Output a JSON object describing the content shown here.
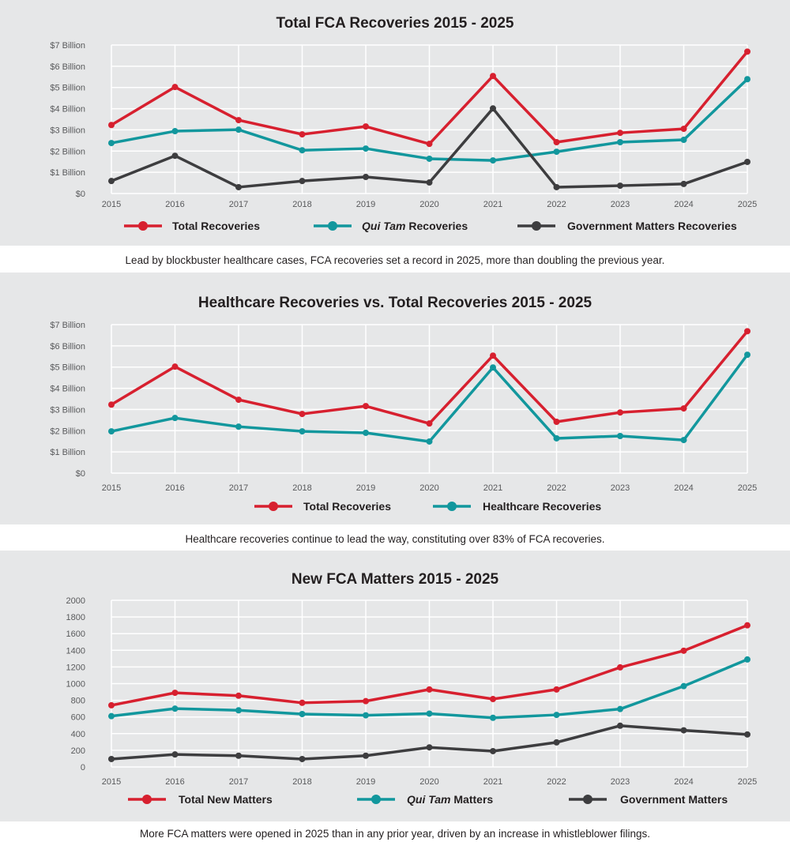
{
  "colors": {
    "panel_bg": "#e6e7e8",
    "grid": "#ffffff",
    "red": "#d7202f",
    "teal": "#12979d",
    "dark": "#3d3d3f"
  },
  "chart_data": [
    {
      "type": "line",
      "title": "Total FCA Recoveries 2015 - 2025",
      "caption": "Lead by blockbuster healthcare cases, FCA recoveries set a record in 2025, more than doubling the previous year.",
      "x": [
        "2015",
        "2016",
        "2017",
        "2018",
        "2019",
        "2020",
        "2021",
        "2022",
        "2023",
        "2024",
        "2025"
      ],
      "ylim": [
        0,
        7
      ],
      "yticks": [
        "$0",
        "$1 Billion",
        "$2 Billion",
        "$3 Billion",
        "$4 Billion",
        "$5 Billion",
        "$6 Billion",
        "$7 Billion"
      ],
      "grid": true,
      "legend": "bottom",
      "series": [
        {
          "name": "Total Recoveries",
          "color": "#d7202f",
          "values": [
            3.23,
            5.02,
            3.46,
            2.79,
            3.16,
            2.34,
            5.54,
            2.42,
            2.86,
            3.05,
            6.69
          ]
        },
        {
          "name": "Qui Tam Recoveries",
          "color": "#12979d",
          "values": [
            2.38,
            2.94,
            3.01,
            2.04,
            2.12,
            1.64,
            1.56,
            1.97,
            2.42,
            2.53,
            5.39
          ]
        },
        {
          "name": "Government Matters Recoveries",
          "color": "#3d3d3f",
          "values": [
            0.59,
            1.78,
            0.3,
            0.59,
            0.78,
            0.52,
            4.01,
            0.3,
            0.37,
            0.45,
            1.49
          ]
        }
      ]
    },
    {
      "type": "line",
      "title": "Healthcare Recoveries vs. Total Recoveries 2015 - 2025",
      "caption": "Healthcare recoveries continue to lead the way, constituting over 83% of FCA recoveries.",
      "x": [
        "2015",
        "2016",
        "2017",
        "2018",
        "2019",
        "2020",
        "2021",
        "2022",
        "2023",
        "2024",
        "2025"
      ],
      "ylim": [
        0,
        7
      ],
      "yticks": [
        "$0",
        "$1 Billion",
        "$2 Billion",
        "$3 Billion",
        "$4 Billion",
        "$5 Billion",
        "$6 Billion",
        "$7 Billion"
      ],
      "grid": true,
      "legend": "bottom",
      "series": [
        {
          "name": "Total Recoveries",
          "color": "#d7202f",
          "values": [
            3.23,
            5.02,
            3.46,
            2.79,
            3.16,
            2.34,
            5.54,
            2.42,
            2.86,
            3.05,
            6.69
          ]
        },
        {
          "name": "Healthcare Recoveries",
          "color": "#12979d",
          "values": [
            1.97,
            2.6,
            2.19,
            1.97,
            1.9,
            1.49,
            4.98,
            1.64,
            1.75,
            1.56,
            5.58
          ]
        }
      ]
    },
    {
      "type": "line",
      "title": "New FCA Matters 2015 - 2025",
      "caption": "More FCA matters were opened in 2025 than in any prior year, driven by an increase in whistleblower filings.",
      "x": [
        "2015",
        "2016",
        "2017",
        "2018",
        "2019",
        "2020",
        "2021",
        "2022",
        "2023",
        "2024",
        "2025"
      ],
      "ylim": [
        0,
        2000
      ],
      "yticks": [
        "0",
        "200",
        "400",
        "600",
        "800",
        "1000",
        "1200",
        "1400",
        "1600",
        "1800",
        "2000"
      ],
      "grid": true,
      "legend": "bottom",
      "series": [
        {
          "name": "Total New Matters",
          "color": "#d7202f",
          "values": [
            740,
            890,
            855,
            770,
            790,
            930,
            815,
            930,
            1195,
            1395,
            1700
          ]
        },
        {
          "name": "Qui Tam Matters",
          "color": "#12979d",
          "values": [
            610,
            700,
            680,
            635,
            620,
            640,
            590,
            625,
            695,
            970,
            1290
          ]
        },
        {
          "name": "Government Matters",
          "color": "#3d3d3f",
          "values": [
            95,
            150,
            135,
            95,
            135,
            235,
            190,
            295,
            495,
            440,
            390
          ]
        }
      ]
    }
  ]
}
